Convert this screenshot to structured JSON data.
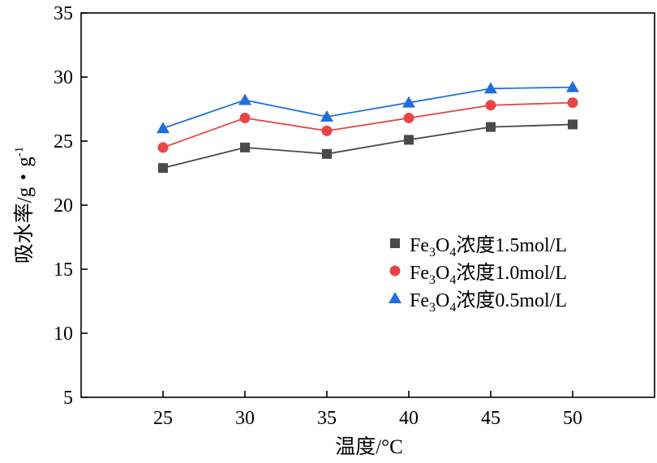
{
  "chart_data": {
    "type": "line",
    "title": "",
    "xlabel": "温度/°C",
    "ylabel": {
      "main": "吸水率/g・g",
      "superscript": "-1"
    },
    "x": [
      25,
      30,
      35,
      40,
      45,
      50
    ],
    "xlim": [
      20,
      55
    ],
    "ylim": [
      5,
      35
    ],
    "xticks": [
      25,
      30,
      35,
      40,
      45,
      50
    ],
    "yticks": [
      5,
      10,
      15,
      20,
      25,
      30,
      35
    ],
    "grid": false,
    "legend_position": "center-right",
    "series": [
      {
        "name": "Fe3O4浓度1.5mol/L",
        "label": {
          "pre": "Fe",
          "sub1": "3",
          "mid": "O",
          "sub2": "4",
          "post": "浓度1.5mol/L"
        },
        "marker": "square",
        "marker_color": "#4a4a4a",
        "line_color": "#4a4a4a",
        "values": [
          22.9,
          24.5,
          24.0,
          25.1,
          26.1,
          26.3
        ]
      },
      {
        "name": "Fe3O4浓度1.0mol/L",
        "label": {
          "pre": "Fe",
          "sub1": "3",
          "mid": "O",
          "sub2": "4",
          "post": "浓度1.0mol/L"
        },
        "marker": "circle",
        "marker_color": "#e84646",
        "line_color": "#e84646",
        "values": [
          24.5,
          26.8,
          25.8,
          26.8,
          27.8,
          28.0
        ]
      },
      {
        "name": "Fe3O4浓度0.5mol/L",
        "label": {
          "pre": "Fe",
          "sub1": "3",
          "mid": "O",
          "sub2": "4",
          "post": "浓度0.5mol/L"
        },
        "marker": "triangle",
        "marker_color": "#1f6fe0",
        "line_color": "#1f6fe0",
        "values": [
          26.0,
          28.2,
          26.9,
          28.0,
          29.1,
          29.2
        ]
      }
    ]
  }
}
